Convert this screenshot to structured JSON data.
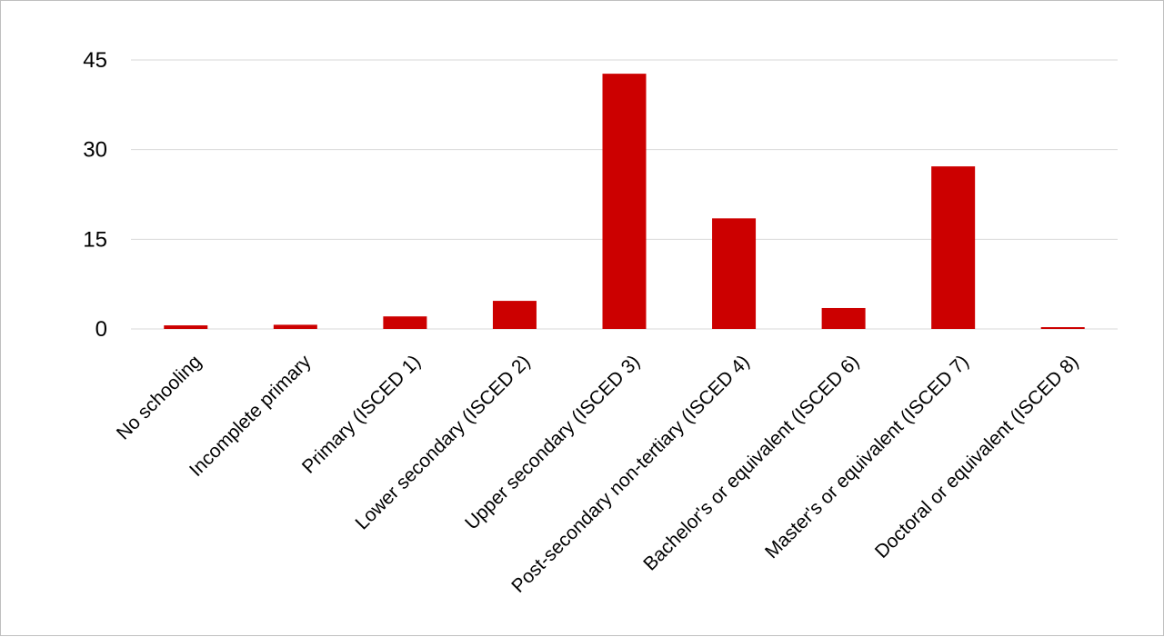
{
  "chart_data": {
    "type": "bar",
    "categories": [
      "No schooling",
      "Incomplete primary",
      "Primary (ISCED 1)",
      "Lower secondary (ISCED 2)",
      "Upper secondary (ISCED 3)",
      "Post-secondary non-tertiary (ISCED 4)",
      "Bachelor's or equivalent (ISCED 6)",
      "Master's or equivalent (ISCED 7)",
      "Doctoral or equivalent (ISCED 8)"
    ],
    "values": [
      0.6,
      0.7,
      2.1,
      4.7,
      42.7,
      18.5,
      3.5,
      27.2,
      0.3
    ],
    "ylim": [
      0,
      45
    ],
    "yticks": [
      0,
      15,
      30,
      45
    ],
    "title": "",
    "xlabel": "",
    "ylabel": "",
    "grid": true,
    "legend": "none",
    "colors": {
      "bar": "#cc0000",
      "grid": "#d9d9d9",
      "frame": "#bfbfbf"
    }
  }
}
